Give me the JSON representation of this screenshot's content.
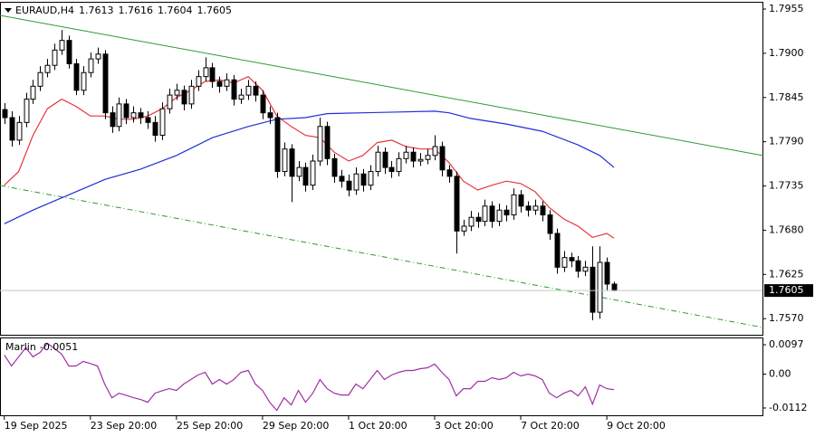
{
  "chart_data": [
    {
      "type": "candlestick",
      "symbol": "EURAUD,H4",
      "open": [
        1.783,
        1.782,
        1.7792,
        1.7814,
        1.7843,
        1.7859,
        1.7876,
        1.7885,
        1.7904,
        1.7916,
        1.7887,
        1.7854,
        1.7876,
        1.7893,
        1.7899,
        1.7826,
        1.7809,
        1.7837,
        1.782,
        1.7826,
        1.782,
        1.7814,
        1.7798,
        1.7831,
        1.7848,
        1.7854,
        1.7837,
        1.7859,
        1.7871,
        1.7882,
        1.7865,
        1.7859,
        1.7867,
        1.7843,
        1.7848,
        1.7859,
        1.7848,
        1.7826,
        1.782,
        1.7753,
        1.7781,
        1.7747,
        1.7758,
        1.7736,
        1.7766,
        1.7809,
        1.7769,
        1.7747,
        1.7741,
        1.773,
        1.775,
        1.7736,
        1.7753,
        1.7777,
        1.7758,
        1.7753,
        1.7769,
        1.7777,
        1.7766,
        1.7768,
        1.7773,
        1.7784,
        1.7755,
        1.7747,
        1.7679,
        1.7685,
        1.7696,
        1.7691,
        1.771,
        1.7691,
        1.7705,
        1.7699,
        1.7724,
        1.771,
        1.7705,
        1.771,
        1.7699,
        1.7676,
        1.7634,
        1.7646,
        1.7642,
        1.7629,
        1.7634,
        1.7578,
        1.764,
        1.7613
      ],
      "high": [
        1.7838,
        1.7828,
        1.7822,
        1.7851,
        1.7867,
        1.7884,
        1.7893,
        1.7912,
        1.7929,
        1.7922,
        1.7893,
        1.7884,
        1.7901,
        1.7907,
        1.7904,
        1.7834,
        1.7845,
        1.7843,
        1.7834,
        1.7832,
        1.7828,
        1.7822,
        1.7839,
        1.7856,
        1.7862,
        1.786,
        1.7867,
        1.7879,
        1.7895,
        1.7888,
        1.7871,
        1.7875,
        1.7873,
        1.7856,
        1.7867,
        1.7865,
        1.7854,
        1.7834,
        1.7826,
        1.7789,
        1.7787,
        1.7766,
        1.7764,
        1.7774,
        1.782,
        1.7815,
        1.7775,
        1.7755,
        1.7749,
        1.7758,
        1.7756,
        1.7761,
        1.7785,
        1.7783,
        1.7766,
        1.7777,
        1.7785,
        1.7783,
        1.7776,
        1.7781,
        1.7798,
        1.779,
        1.7761,
        1.7753,
        1.7693,
        1.7704,
        1.7702,
        1.7718,
        1.7716,
        1.7713,
        1.7711,
        1.7732,
        1.773,
        1.7716,
        1.7718,
        1.7716,
        1.7705,
        1.7682,
        1.7654,
        1.7652,
        1.7648,
        1.7642,
        1.766,
        1.766,
        1.7646,
        1.7616
      ],
      "low": [
        1.7812,
        1.7784,
        1.7786,
        1.7808,
        1.7837,
        1.7853,
        1.787,
        1.7879,
        1.7898,
        1.7881,
        1.7848,
        1.7848,
        1.787,
        1.7887,
        1.7818,
        1.7801,
        1.7803,
        1.7812,
        1.7814,
        1.7812,
        1.7806,
        1.779,
        1.7792,
        1.7825,
        1.7842,
        1.7829,
        1.7831,
        1.7853,
        1.7865,
        1.7857,
        1.7851,
        1.7853,
        1.7835,
        1.7837,
        1.7842,
        1.784,
        1.7818,
        1.7812,
        1.7745,
        1.7747,
        1.7715,
        1.7741,
        1.7728,
        1.773,
        1.776,
        1.7761,
        1.7739,
        1.7733,
        1.7722,
        1.7724,
        1.7728,
        1.773,
        1.7747,
        1.775,
        1.7745,
        1.7747,
        1.7763,
        1.7758,
        1.776,
        1.7762,
        1.7767,
        1.7747,
        1.7739,
        1.7651,
        1.7673,
        1.7679,
        1.7683,
        1.7685,
        1.7683,
        1.7685,
        1.7691,
        1.7693,
        1.7702,
        1.7697,
        1.7699,
        1.7691,
        1.7668,
        1.7626,
        1.7628,
        1.7634,
        1.7621,
        1.7623,
        1.7568,
        1.757,
        1.7605,
        1.7604
      ],
      "close": [
        1.782,
        1.7792,
        1.7814,
        1.7843,
        1.7859,
        1.7876,
        1.7885,
        1.7904,
        1.7916,
        1.7887,
        1.7854,
        1.7876,
        1.7893,
        1.7899,
        1.7826,
        1.7809,
        1.7837,
        1.782,
        1.7826,
        1.782,
        1.7814,
        1.7798,
        1.7831,
        1.7848,
        1.7854,
        1.7837,
        1.7859,
        1.7871,
        1.7882,
        1.7865,
        1.7859,
        1.7867,
        1.7843,
        1.7848,
        1.7859,
        1.7848,
        1.7826,
        1.782,
        1.7753,
        1.7781,
        1.7747,
        1.7758,
        1.7736,
        1.7766,
        1.7809,
        1.7769,
        1.7747,
        1.7741,
        1.773,
        1.775,
        1.7736,
        1.7753,
        1.7777,
        1.7758,
        1.7753,
        1.7769,
        1.7777,
        1.7766,
        1.7768,
        1.7773,
        1.7784,
        1.7755,
        1.7747,
        1.7679,
        1.7685,
        1.7696,
        1.7691,
        1.771,
        1.7691,
        1.7705,
        1.7699,
        1.7724,
        1.771,
        1.7705,
        1.771,
        1.7699,
        1.7676,
        1.7634,
        1.7646,
        1.7642,
        1.7629,
        1.7634,
        1.7578,
        1.764,
        1.7613,
        1.7605
      ],
      "overlays": [
        {
          "color": "#e8353b",
          "x": [
            0,
            2,
            4,
            6,
            8,
            10,
            12,
            14,
            16,
            18,
            20,
            22,
            24,
            26,
            28,
            30,
            32,
            34,
            36,
            38,
            40,
            42,
            44,
            46,
            48,
            50,
            52,
            54,
            56,
            58,
            60,
            62,
            64,
            66,
            68,
            70,
            72,
            74,
            76,
            78,
            80,
            82,
            84,
            85
          ],
          "values": [
            1.7736,
            1.7753,
            1.7798,
            1.7831,
            1.7843,
            1.7834,
            1.7822,
            1.7822,
            1.7818,
            1.7818,
            1.7822,
            1.7831,
            1.7845,
            1.7854,
            1.7865,
            1.7867,
            1.7863,
            1.7871,
            1.7854,
            1.7822,
            1.7809,
            1.7798,
            1.7795,
            1.7777,
            1.7766,
            1.7773,
            1.7789,
            1.7792,
            1.7784,
            1.7781,
            1.7781,
            1.7764,
            1.7741,
            1.773,
            1.7736,
            1.7741,
            1.7738,
            1.7728,
            1.7708,
            1.7694,
            1.7685,
            1.7671,
            1.7676,
            1.767
          ]
        },
        {
          "color": "#1f2fd8",
          "x": [
            0,
            4,
            9,
            14,
            19,
            24,
            29,
            34,
            38,
            42,
            45,
            50,
            55,
            60,
            62,
            65,
            70,
            75,
            80,
            83,
            85
          ],
          "values": [
            1.7688,
            1.7705,
            1.7724,
            1.7743,
            1.7756,
            1.7773,
            1.7795,
            1.7809,
            1.7818,
            1.782,
            1.7825,
            1.7826,
            1.7827,
            1.7828,
            1.7826,
            1.7819,
            1.7812,
            1.7803,
            1.7786,
            1.7773,
            1.7758
          ]
        }
      ],
      "xlim": [
        -0.6,
        105.7
      ],
      "ylim": [
        1.755,
        1.7964
      ],
      "yticks": [
        1.7955,
        {
          "value": 1.79,
          "label": "1.7900"
        },
        1.7845,
        {
          "value": 1.779,
          "label": "1.7790"
        },
        1.7735,
        {
          "value": 1.768,
          "label": "1.7680"
        },
        1.7625,
        {
          "value": 1.757,
          "label": "1.7570"
        }
      ],
      "xticks": [
        {
          "value": 0,
          "label": "19 Sep 2025"
        },
        {
          "value": 12,
          "label": "23 Sep 20:00"
        },
        {
          "value": 24,
          "label": "25 Sep 20:00"
        },
        {
          "value": 36,
          "label": "29 Sep 20:00"
        },
        {
          "value": 48,
          "label": "1 Oct 20:00"
        },
        {
          "value": 60,
          "label": "3 Oct 20:00"
        },
        {
          "value": 72,
          "label": "7 Oct 20:00"
        },
        {
          "value": 84,
          "label": "9 Oct 20:00"
        }
      ]
    },
    {
      "type": "line",
      "name": "Marlin",
      "color": "#a02fa6",
      "values": [
        0.0063,
        0.0027,
        0.0057,
        0.0087,
        0.0057,
        0.0072,
        0.0102,
        0.0084,
        0.0066,
        0.0027,
        0.0027,
        0.0042,
        0.0035,
        0.0027,
        -0.0033,
        -0.0078,
        -0.0063,
        -0.007,
        -0.0078,
        -0.0084,
        -0.0093,
        -0.0063,
        -0.0055,
        -0.0048,
        -0.0054,
        -0.0033,
        -0.0018,
        -0.0003,
        0.0006,
        -0.0033,
        -0.0018,
        -0.0033,
        -0.0018,
        0.0006,
        0.0012,
        -0.0033,
        -0.0054,
        -0.0093,
        -0.012,
        -0.0078,
        -0.0102,
        -0.0054,
        -0.0093,
        -0.0063,
        -0.0018,
        -0.0048,
        -0.0063,
        -0.0069,
        -0.0069,
        -0.0033,
        -0.0048,
        -0.0018,
        0.0012,
        -0.0018,
        -0.0003,
        0.0006,
        0.0012,
        0.0012,
        0.0018,
        0.0021,
        0.0033,
        0.0006,
        -0.0018,
        -0.0072,
        -0.0048,
        -0.0048,
        -0.0024,
        -0.0024,
        -0.0012,
        -0.0018,
        -0.0012,
        0.0006,
        -0.0006,
        0,
        -0.0006,
        -0.0018,
        -0.0063,
        -0.0078,
        -0.0063,
        -0.0054,
        -0.0072,
        -0.0042,
        -0.0099,
        -0.0036,
        -0.0048,
        -0.0051
      ],
      "ylim": [
        -0.0136,
        0.0121
      ],
      "yticks": [
        0.0097,
        {
          "value": 0,
          "label": "0.00"
        },
        -0.0112
      ]
    }
  ]
}
